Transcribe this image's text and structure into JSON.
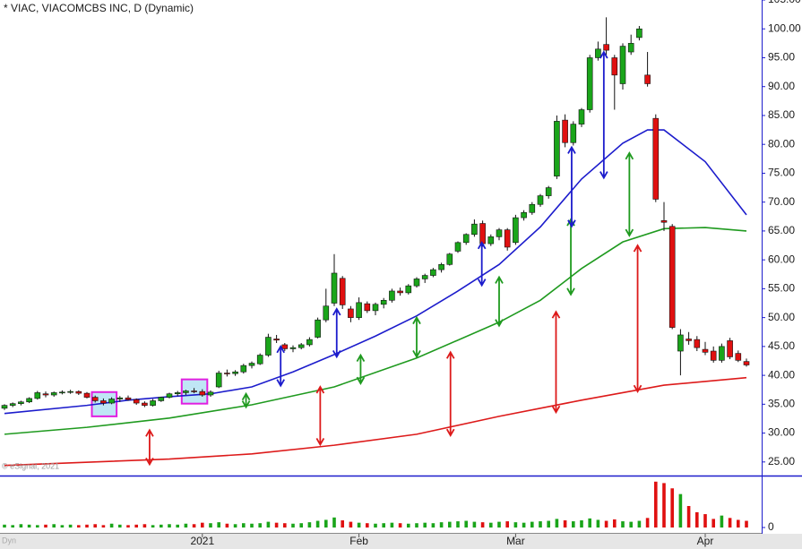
{
  "chart_data": {
    "type": "candlestick",
    "title": "* VIAC, VIACOMCBS INC, D (Dynamic)",
    "copyright": "© eSignal, 2021",
    "corner_label": "Dyn",
    "up_color": "#1aa51a",
    "down_color": "#e01010",
    "categories": [
      null,
      null,
      null,
      null,
      null,
      null,
      null,
      null,
      null,
      null,
      null,
      null,
      null,
      null,
      null,
      null,
      null,
      null,
      null,
      null,
      null,
      null,
      null,
      null,
      "2021",
      null,
      null,
      null,
      null,
      null,
      null,
      null,
      null,
      null,
      null,
      null,
      null,
      null,
      null,
      null,
      null,
      null,
      null,
      "Feb",
      null,
      null,
      null,
      null,
      null,
      null,
      null,
      null,
      null,
      null,
      null,
      null,
      null,
      null,
      null,
      null,
      null,
      null,
      "Mar",
      null,
      null,
      null,
      null,
      null,
      null,
      null,
      null,
      null,
      null,
      null,
      null,
      null,
      null,
      null,
      null,
      null,
      null,
      null,
      null,
      null,
      null,
      "Apr",
      null,
      null,
      null,
      null,
      null
    ],
    "open": [
      34.3,
      34.8,
      35.1,
      35.4,
      36,
      36.8,
      36.6,
      37,
      37.1,
      37.2,
      36.9,
      36.2,
      35.6,
      35.2,
      35.9,
      36.1,
      35.8,
      35.2,
      34.8,
      35.6,
      36.2,
      36.8,
      37,
      37.3,
      37.2,
      36.6,
      38,
      40.4,
      40.3,
      40.6,
      41.7,
      42,
      43.5,
      46.3,
      45.3,
      44.6,
      44.8,
      45.3,
      46.6,
      49.6,
      52.5,
      56.8,
      51.5,
      50,
      52.4,
      51.2,
      52.3,
      53,
      54.6,
      54.3,
      55.5,
      56.7,
      57.3,
      58.3,
      59.2,
      61.5,
      63,
      64.4,
      66.3,
      62.8,
      64,
      65.2,
      63,
      67.3,
      68.2,
      69.6,
      71.1,
      74.5,
      84.2,
      80.3,
      83.5,
      86,
      95,
      97.3,
      95,
      90.5,
      96,
      98.5,
      92,
      84.5,
      66.8,
      65.8,
      44.2,
      46.3,
      46.2,
      44.5,
      44.2,
      42.6,
      46,
      43.8,
      42.4
    ],
    "high": [
      35,
      35.3,
      35.6,
      36.2,
      37.3,
      37.2,
      37.2,
      37.4,
      37.5,
      37.4,
      37.1,
      36.5,
      36,
      36.2,
      36.4,
      36.5,
      36,
      35.5,
      35.9,
      36.3,
      37,
      37.3,
      37.5,
      37.8,
      37.6,
      37.4,
      40.8,
      41,
      40.9,
      42,
      42.4,
      43.8,
      47.2,
      47,
      45.6,
      45.2,
      45.6,
      46.6,
      50,
      55,
      61,
      57.2,
      52,
      53.5,
      52.8,
      52.6,
      53.4,
      55,
      55.2,
      55.8,
      57,
      57.6,
      58.6,
      59.5,
      61.2,
      63.2,
      64.6,
      67,
      66.8,
      64.4,
      65.5,
      65.5,
      67.8,
      68.6,
      70,
      71.4,
      72.8,
      85,
      85.2,
      84,
      86.3,
      95.5,
      97.8,
      102,
      95.5,
      97.5,
      99,
      100.5,
      96,
      85.2,
      70,
      66.2,
      48,
      47.5,
      46.8,
      45.8,
      45,
      45.5,
      46.5,
      44.3,
      42.9
    ],
    "low": [
      34,
      34.5,
      34.8,
      35.2,
      35.8,
      36.2,
      36.3,
      36.7,
      36.8,
      36.6,
      36,
      35.3,
      34.8,
      35,
      35.4,
      35.6,
      34.9,
      34.5,
      34.6,
      35.4,
      36,
      36.4,
      36.6,
      36.9,
      36.3,
      36.3,
      37.8,
      39.8,
      39.9,
      40.3,
      41.2,
      41.8,
      43.2,
      45.6,
      44.2,
      44,
      44.5,
      45,
      46.4,
      49.2,
      52,
      51.5,
      49.2,
      49.6,
      50.8,
      50.4,
      51.6,
      52.6,
      53.8,
      54,
      55.2,
      56,
      57,
      57.8,
      59,
      61.2,
      62.6,
      64,
      62.3,
      62.4,
      63.4,
      61.6,
      62.6,
      66.8,
      67.8,
      69.2,
      70.6,
      74,
      79.5,
      79.8,
      83,
      85.5,
      94.5,
      95.5,
      86,
      89.5,
      95.5,
      98,
      90,
      70,
      65,
      48,
      40,
      45.3,
      44.2,
      43.5,
      42.2,
      42.2,
      42.8,
      42.3,
      41.5
    ],
    "close": [
      34.8,
      35.1,
      35.4,
      36,
      37,
      36.6,
      37,
      37.1,
      37.2,
      36.9,
      36.2,
      35.6,
      35.2,
      35.9,
      36.1,
      35.8,
      35.2,
      34.8,
      35.6,
      36.2,
      36.8,
      37,
      37.3,
      37.2,
      36.6,
      37.1,
      40.4,
      40.3,
      40.6,
      41.7,
      42.1,
      43.5,
      46.6,
      46.1,
      44.6,
      44.8,
      45.3,
      46.2,
      49.6,
      52,
      57.7,
      52.2,
      50,
      52.6,
      51.2,
      52.3,
      53,
      54.6,
      54.3,
      55.5,
      56.7,
      57.3,
      58.3,
      59.2,
      61,
      63,
      64.4,
      66.2,
      62.8,
      64,
      65.2,
      62.2,
      67.3,
      68.2,
      69.6,
      71.1,
      72.5,
      84,
      80.3,
      83.5,
      86,
      95,
      96.5,
      96.3,
      92,
      97,
      97.5,
      100,
      90.5,
      70.5,
      66.5,
      48.3,
      47,
      46,
      44.8,
      44,
      42.6,
      45,
      43.2,
      42.6,
      41.8
    ],
    "volume": [
      6,
      5,
      7,
      6,
      5,
      6,
      7,
      5,
      6,
      5,
      6,
      7,
      5,
      8,
      6,
      5,
      6,
      7,
      5,
      6,
      7,
      6,
      8,
      7,
      10,
      9,
      11,
      8,
      7,
      9,
      8,
      9,
      12,
      10,
      9,
      8,
      9,
      11,
      14,
      16,
      21,
      15,
      12,
      10,
      9,
      8,
      9,
      10,
      9,
      8,
      9,
      10,
      9,
      11,
      12,
      13,
      14,
      12,
      11,
      10,
      12,
      13,
      11,
      10,
      12,
      13,
      14,
      18,
      15,
      13,
      15,
      19,
      16,
      14,
      17,
      13,
      12,
      14,
      20,
      96,
      93,
      82,
      70,
      45,
      32,
      28,
      18,
      25,
      20,
      16,
      14
    ],
    "ylim": [
      22.8,
      105
    ],
    "yticks": [
      {
        "value": 105,
        "label": "105.00"
      },
      {
        "value": 100,
        "label": "100.00"
      },
      {
        "value": 95,
        "label": "95.00"
      },
      {
        "value": 90,
        "label": "90.00"
      },
      {
        "value": 85,
        "label": "85.00"
      },
      {
        "value": 80,
        "label": "80.00"
      },
      {
        "value": 75,
        "label": "75.00"
      },
      {
        "value": 70,
        "label": "70.00"
      },
      {
        "value": 65,
        "label": "65.00"
      },
      {
        "value": 60,
        "label": "60.00"
      },
      {
        "value": 55,
        "label": "55.00"
      },
      {
        "value": 50,
        "label": "50.00"
      },
      {
        "value": 45,
        "label": "45.00"
      },
      {
        "value": 40,
        "label": "40.00"
      },
      {
        "value": 35,
        "label": "35.00"
      },
      {
        "value": 30,
        "label": "30.00"
      },
      {
        "value": 25,
        "label": "25.00"
      }
    ],
    "volume_lim": [
      0,
      105
    ],
    "volume_ticks": [
      0
    ],
    "series": [
      {
        "color": "#1c1ccc",
        "x": [
          0,
          10,
          15,
          20,
          25,
          30,
          35,
          40,
          45,
          50,
          55,
          60,
          65,
          70,
          75,
          78,
          80,
          85,
          90
        ],
        "values": [
          33.4,
          34.8,
          35.7,
          36.3,
          36.8,
          38,
          40.6,
          43.6,
          46.8,
          50.3,
          54.6,
          59.2,
          65.7,
          74,
          80.2,
          82.5,
          82.5,
          77,
          67.8
        ]
      },
      {
        "color": "#1f9a1f",
        "x": [
          0,
          10,
          20,
          30,
          40,
          50,
          60,
          65,
          70,
          75,
          80,
          85,
          90
        ],
        "values": [
          29.8,
          31,
          32.6,
          34.9,
          38,
          43,
          49.2,
          53,
          58.5,
          63.1,
          65.4,
          65.6,
          65
        ]
      },
      {
        "color": "#dd1a1a",
        "x": [
          0,
          20,
          30,
          40,
          50,
          60,
          70,
          80,
          90
        ],
        "values": [
          24.4,
          25.5,
          26.4,
          27.9,
          29.8,
          32.9,
          35.7,
          38.3,
          39.6
        ]
      }
    ],
    "arrows": [
      {
        "x": 17.6,
        "top": 30.5,
        "bottom": 24.6,
        "color": "#dd1a1a"
      },
      {
        "x": 38.3,
        "top": 38,
        "bottom": 28,
        "color": "#dd1a1a"
      },
      {
        "x": 54.1,
        "top": 44,
        "bottom": 29.6,
        "color": "#dd1a1a"
      },
      {
        "x": 66.9,
        "top": 51,
        "bottom": 33.6,
        "color": "#dd1a1a"
      },
      {
        "x": 76.8,
        "top": 62.5,
        "bottom": 37.2,
        "color": "#dd1a1a"
      },
      {
        "x": 29.3,
        "top": 36.8,
        "bottom": 34.5,
        "color": "#1f9a1f"
      },
      {
        "x": 43.2,
        "top": 43.5,
        "bottom": 38.6,
        "color": "#1f9a1f"
      },
      {
        "x": 50,
        "top": 50,
        "bottom": 43.2,
        "color": "#1f9a1f"
      },
      {
        "x": 60,
        "top": 57,
        "bottom": 48.6,
        "color": "#1f9a1f"
      },
      {
        "x": 68.7,
        "top": 67,
        "bottom": 54,
        "color": "#1f9a1f"
      },
      {
        "x": 75.8,
        "top": 78.5,
        "bottom": 64.2,
        "color": "#1f9a1f"
      },
      {
        "x": 33.5,
        "top": 45,
        "bottom": 38.2,
        "color": "#1c1ccc"
      },
      {
        "x": 40.3,
        "top": 51.5,
        "bottom": 43.2,
        "color": "#1c1ccc"
      },
      {
        "x": 57.9,
        "top": 63,
        "bottom": 55.6,
        "color": "#1c1ccc"
      },
      {
        "x": 68.8,
        "top": 79.5,
        "bottom": 65.8,
        "color": "#1c1ccc"
      },
      {
        "x": 72.7,
        "top": 96,
        "bottom": 74.2,
        "color": "#1c1ccc"
      }
    ],
    "highlights": [
      {
        "x0": 10.6,
        "x1": 13.6,
        "top": 37.1,
        "bottom": 32.9
      },
      {
        "x0": 21.5,
        "x1": 24.6,
        "top": 39.3,
        "bottom": 35.1
      }
    ]
  }
}
